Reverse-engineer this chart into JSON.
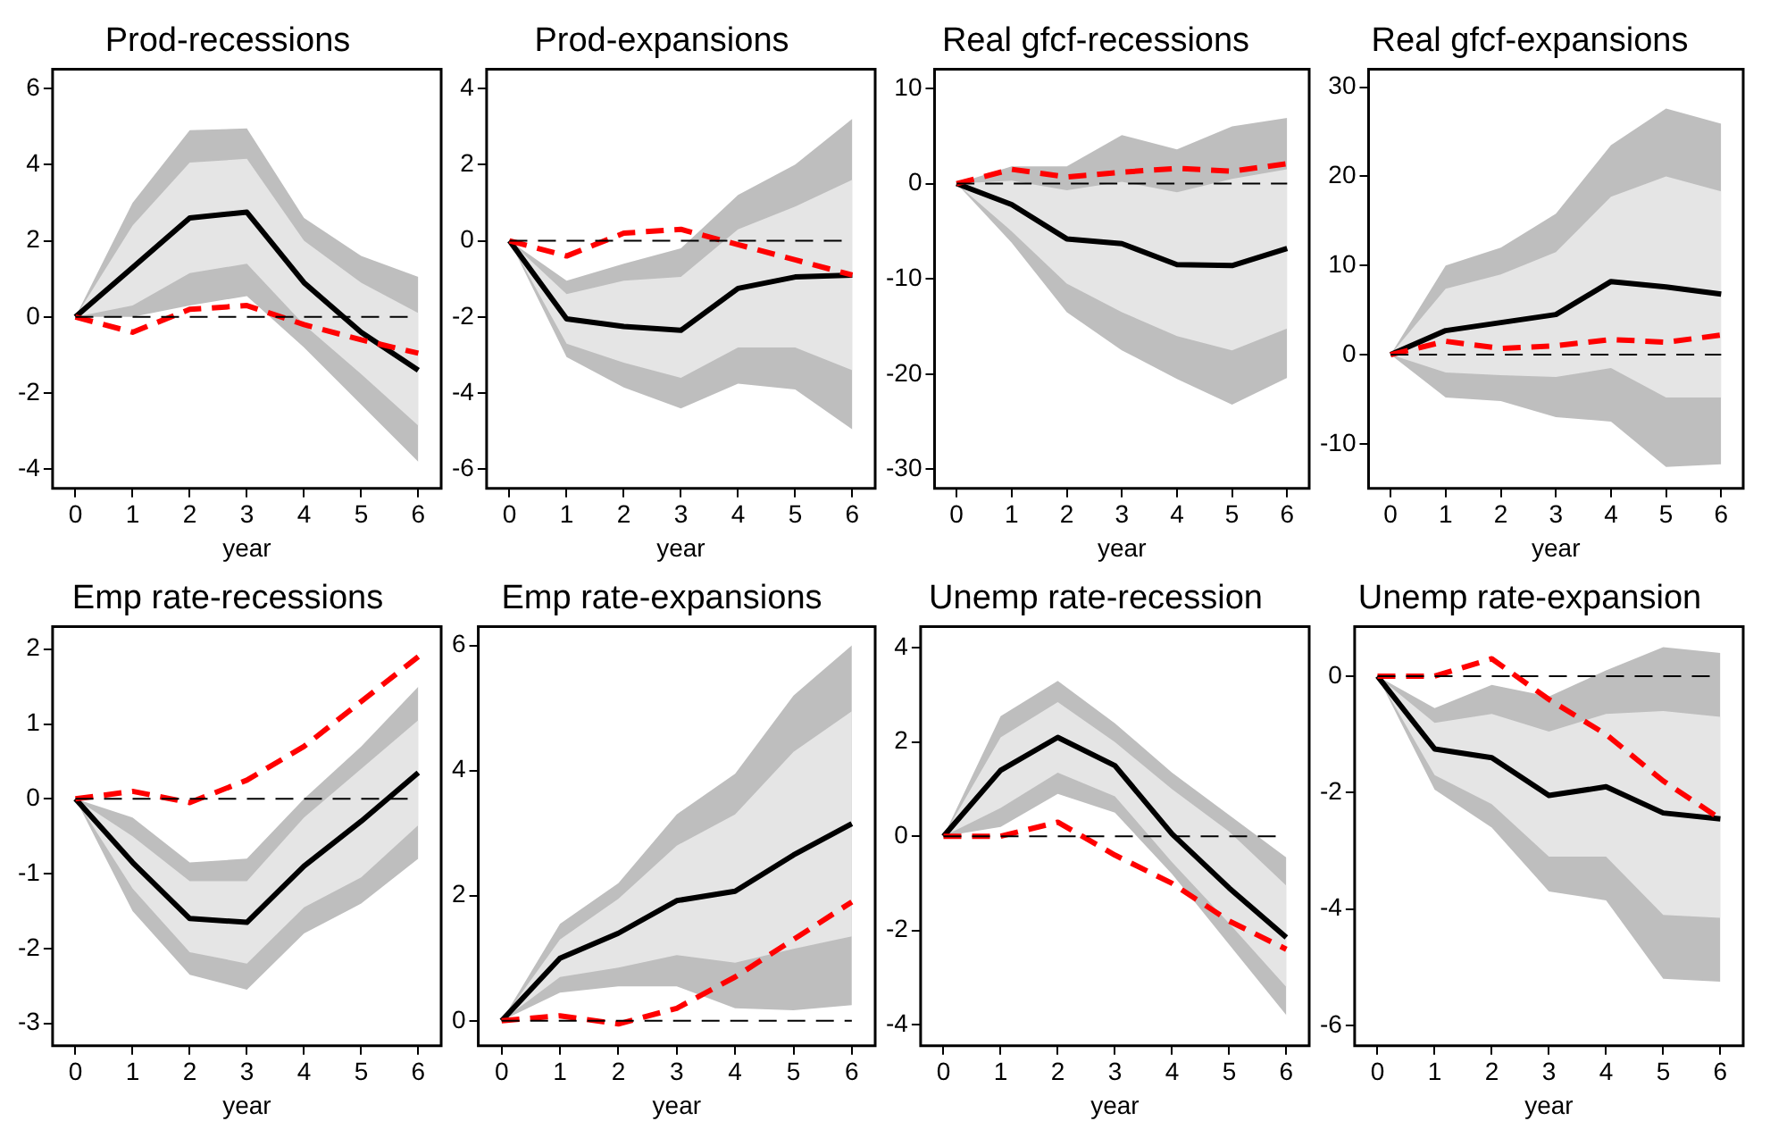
{
  "chart_data": [
    {
      "type": "line",
      "title": "Prod-recessions",
      "xlabel": "year",
      "x": [
        0,
        1,
        2,
        3,
        4,
        5,
        6
      ],
      "xlim": [
        -0.4,
        6.4
      ],
      "xticks": [
        0,
        1,
        2,
        3,
        4,
        5,
        6
      ],
      "ylim": [
        -4.5,
        6.5
      ],
      "yticks": [
        -4,
        -2,
        0,
        2,
        4,
        6
      ],
      "grid": false,
      "ref_lines": [
        {
          "axis": "y",
          "value": 0,
          "color": "#000000",
          "line_style": "dashed"
        }
      ],
      "series": [
        {
          "color": "#bebebe",
          "values": [
            null,
            null,
            null,
            null,
            null,
            null,
            null
          ],
          "lower": [
            0,
            0,
            0.3,
            0.55,
            -0.8,
            -2.3,
            -3.8
          ],
          "upper": [
            0,
            3.0,
            4.9,
            4.95,
            2.6,
            1.6,
            1.05
          ]
        },
        {
          "color": "#e5e5e5",
          "values": [
            null,
            null,
            null,
            null,
            null,
            null,
            null
          ],
          "lower": [
            0,
            0.3,
            1.15,
            1.4,
            -0.2,
            -1.5,
            -2.85
          ],
          "upper": [
            0,
            2.4,
            4.05,
            4.15,
            2.0,
            0.9,
            0.1
          ]
        },
        {
          "color": "#000000",
          "values": [
            0,
            1.3,
            2.6,
            2.75,
            0.9,
            -0.4,
            -1.4
          ]
        },
        {
          "color": "#ff0000",
          "line_style": "dashed",
          "values": [
            0,
            -0.4,
            0.2,
            0.3,
            -0.2,
            -0.6,
            -0.95
          ]
        }
      ]
    },
    {
      "type": "line",
      "title": "Prod-expansions",
      "xlabel": "year",
      "x": [
        0,
        1,
        2,
        3,
        4,
        5,
        6
      ],
      "xlim": [
        -0.4,
        6.4
      ],
      "xticks": [
        0,
        1,
        2,
        3,
        4,
        5,
        6
      ],
      "ylim": [
        -6.5,
        4.5
      ],
      "yticks": [
        -6,
        -4,
        -2,
        0,
        2,
        4
      ],
      "grid": false,
      "ref_lines": [
        {
          "axis": "y",
          "value": 0,
          "color": "#000000",
          "line_style": "dashed"
        }
      ],
      "series": [
        {
          "color": "#bebebe",
          "values": [
            null,
            null,
            null,
            null,
            null,
            null,
            null
          ],
          "lower": [
            0,
            -3.05,
            -3.85,
            -4.4,
            -3.75,
            -3.9,
            -4.95
          ],
          "upper": [
            0,
            -1.05,
            -0.6,
            -0.2,
            1.2,
            2.0,
            3.2
          ]
        },
        {
          "color": "#e5e5e5",
          "values": [
            null,
            null,
            null,
            null,
            null,
            null,
            null
          ],
          "lower": [
            0,
            -2.7,
            -3.2,
            -3.6,
            -2.8,
            -2.8,
            -3.4
          ],
          "upper": [
            0,
            -1.4,
            -1.05,
            -0.95,
            0.3,
            0.9,
            1.6
          ]
        },
        {
          "color": "#000000",
          "values": [
            0,
            -2.05,
            -2.25,
            -2.35,
            -1.25,
            -0.95,
            -0.9
          ]
        },
        {
          "color": "#ff0000",
          "line_style": "dashed",
          "values": [
            0,
            -0.4,
            0.2,
            0.3,
            -0.1,
            -0.5,
            -0.9
          ]
        }
      ]
    },
    {
      "type": "line",
      "title": "Real gfcf-recessions",
      "xlabel": "year",
      "x": [
        0,
        1,
        2,
        3,
        4,
        5,
        6
      ],
      "xlim": [
        -0.4,
        6.4
      ],
      "xticks": [
        0,
        1,
        2,
        3,
        4,
        5,
        6
      ],
      "ylim": [
        -32,
        12
      ],
      "yticks": [
        -30,
        -20,
        -10,
        0,
        10
      ],
      "grid": false,
      "ref_lines": [
        {
          "axis": "y",
          "value": 0,
          "color": "#000000",
          "line_style": "dashed"
        }
      ],
      "series": [
        {
          "color": "#bebebe",
          "values": [
            null,
            null,
            null,
            null,
            null,
            null,
            null
          ],
          "lower": [
            0,
            -6.2,
            -13.5,
            -17.5,
            -20.5,
            -23.2,
            -20.4
          ],
          "upper": [
            0,
            1.8,
            1.8,
            5.1,
            3.6,
            6.0,
            6.9
          ]
        },
        {
          "color": "#e5e5e5",
          "values": [
            null,
            null,
            null,
            null,
            null,
            null,
            null
          ],
          "lower": [
            0,
            -5,
            -10.5,
            -13.5,
            -16,
            -17.5,
            -15.2
          ],
          "upper": [
            0,
            0.3,
            -0.7,
            0.2,
            -0.9,
            0.5,
            1.5
          ]
        },
        {
          "color": "#000000",
          "values": [
            0,
            -2.2,
            -5.8,
            -6.3,
            -8.5,
            -8.6,
            -6.8
          ]
        },
        {
          "color": "#ff0000",
          "line_style": "dashed",
          "values": [
            0,
            1.5,
            0.7,
            1.2,
            1.6,
            1.3,
            2.1
          ]
        }
      ]
    },
    {
      "type": "line",
      "title": "Real gfcf-expansions",
      "xlabel": "year",
      "x": [
        0,
        1,
        2,
        3,
        4,
        5,
        6
      ],
      "xlim": [
        -0.4,
        6.4
      ],
      "xticks": [
        0,
        1,
        2,
        3,
        4,
        5,
        6
      ],
      "ylim": [
        -15,
        32
      ],
      "yticks": [
        -10,
        0,
        10,
        20,
        30
      ],
      "grid": false,
      "ref_lines": [
        {
          "axis": "y",
          "value": 0,
          "color": "#000000",
          "line_style": "dashed"
        }
      ],
      "series": [
        {
          "color": "#bebebe",
          "values": [
            null,
            null,
            null,
            null,
            null,
            null,
            null
          ],
          "lower": [
            0,
            -4.8,
            -5.2,
            -7,
            -7.5,
            -12.6,
            -12.3
          ],
          "upper": [
            0,
            10,
            12,
            15.8,
            23.5,
            27.6,
            25.9
          ]
        },
        {
          "color": "#e5e5e5",
          "values": [
            null,
            null,
            null,
            null,
            null,
            null,
            null
          ],
          "lower": [
            0,
            -2,
            -2.3,
            -2.5,
            -1.5,
            -4.8,
            -4.8
          ],
          "upper": [
            0,
            7.4,
            9,
            11.5,
            17.7,
            20,
            18.3
          ]
        },
        {
          "color": "#000000",
          "values": [
            0,
            2.7,
            3.6,
            4.5,
            8.2,
            7.6,
            6.8
          ]
        },
        {
          "color": "#ff0000",
          "line_style": "dashed",
          "values": [
            0,
            1.5,
            0.7,
            1.0,
            1.7,
            1.4,
            2.2
          ]
        }
      ]
    },
    {
      "type": "line",
      "title": "Emp rate-recessions",
      "xlabel": "year",
      "x": [
        0,
        1,
        2,
        3,
        4,
        5,
        6
      ],
      "xlim": [
        -0.4,
        6.4
      ],
      "xticks": [
        0,
        1,
        2,
        3,
        4,
        5,
        6
      ],
      "ylim": [
        -3.3,
        2.3
      ],
      "yticks": [
        -3,
        -2,
        -1,
        0,
        1,
        2
      ],
      "grid": false,
      "ref_lines": [
        {
          "axis": "y",
          "value": 0,
          "color": "#000000",
          "line_style": "dashed"
        }
      ],
      "series": [
        {
          "color": "#bebebe",
          "values": [
            null,
            null,
            null,
            null,
            null,
            null,
            null
          ],
          "lower": [
            0,
            -1.5,
            -2.35,
            -2.55,
            -1.8,
            -1.4,
            -0.8
          ],
          "upper": [
            0,
            -0.25,
            -0.85,
            -0.8,
            0,
            0.7,
            1.5
          ]
        },
        {
          "color": "#e5e5e5",
          "values": [
            null,
            null,
            null,
            null,
            null,
            null,
            null
          ],
          "lower": [
            0,
            -1.2,
            -2.05,
            -2.2,
            -1.45,
            -1.05,
            -0.35
          ],
          "upper": [
            0,
            -0.5,
            -1.1,
            -1.1,
            -0.25,
            0.4,
            1.05
          ]
        },
        {
          "color": "#000000",
          "values": [
            0,
            -0.85,
            -1.6,
            -1.65,
            -0.9,
            -0.3,
            0.35
          ]
        },
        {
          "color": "#ff0000",
          "line_style": "dashed",
          "values": [
            0,
            0.1,
            -0.05,
            0.25,
            0.7,
            1.3,
            1.9
          ]
        }
      ]
    },
    {
      "type": "line",
      "title": "Emp rate-expansions",
      "xlabel": "year",
      "x": [
        0,
        1,
        2,
        3,
        4,
        5,
        6
      ],
      "xlim": [
        -0.4,
        6.4
      ],
      "xticks": [
        0,
        1,
        2,
        3,
        4,
        5,
        6
      ],
      "ylim": [
        -0.4,
        6.3
      ],
      "yticks": [
        0,
        2,
        4,
        6
      ],
      "grid": false,
      "ref_lines": [
        {
          "axis": "y",
          "value": 0,
          "color": "#000000",
          "line_style": "dashed"
        }
      ],
      "series": [
        {
          "color": "#bebebe",
          "values": [
            null,
            null,
            null,
            null,
            null,
            null,
            null
          ],
          "lower": [
            0,
            0.45,
            0.55,
            0.55,
            0.2,
            0.17,
            0.25
          ],
          "upper": [
            0,
            1.55,
            2.2,
            3.3,
            3.95,
            5.2,
            6.0
          ]
        },
        {
          "color": "#e5e5e5",
          "values": [
            null,
            null,
            null,
            null,
            null,
            null,
            null
          ],
          "lower": [
            0,
            0.7,
            0.85,
            1.05,
            0.93,
            1.15,
            1.35
          ],
          "upper": [
            0,
            1.3,
            1.95,
            2.8,
            3.3,
            4.3,
            4.95
          ]
        },
        {
          "color": "#000000",
          "values": [
            0,
            1.0,
            1.4,
            1.92,
            2.07,
            2.65,
            3.15
          ]
        },
        {
          "color": "#ff0000",
          "line_style": "dashed",
          "values": [
            0,
            0.08,
            -0.05,
            0.2,
            0.7,
            1.3,
            1.9
          ]
        }
      ]
    },
    {
      "type": "line",
      "title": "Unemp rate-recession",
      "xlabel": "year",
      "x": [
        0,
        1,
        2,
        3,
        4,
        5,
        6
      ],
      "xlim": [
        -0.4,
        6.4
      ],
      "xticks": [
        0,
        1,
        2,
        3,
        4,
        5,
        6
      ],
      "ylim": [
        -4.45,
        4.45
      ],
      "yticks": [
        -4,
        -2,
        0,
        2,
        4
      ],
      "grid": false,
      "ref_lines": [
        {
          "axis": "y",
          "value": 0,
          "color": "#000000",
          "line_style": "dashed"
        }
      ],
      "series": [
        {
          "color": "#bebebe",
          "values": [
            null,
            null,
            null,
            null,
            null,
            null,
            null
          ],
          "lower": [
            0,
            0.2,
            0.9,
            0.5,
            -0.8,
            -2.3,
            -3.8
          ],
          "upper": [
            0,
            2.55,
            3.3,
            2.4,
            1.35,
            0.45,
            -0.45
          ]
        },
        {
          "color": "#e5e5e5",
          "values": [
            null,
            null,
            null,
            null,
            null,
            null,
            null
          ],
          "lower": [
            0,
            0.6,
            1.35,
            0.85,
            -0.55,
            -1.85,
            -3.2
          ],
          "upper": [
            0,
            2.1,
            2.85,
            2.0,
            1.0,
            0.1,
            -1.05
          ]
        },
        {
          "color": "#000000",
          "values": [
            0,
            1.4,
            2.1,
            1.5,
            0.05,
            -1.1,
            -2.15
          ]
        },
        {
          "color": "#ff0000",
          "line_style": "dashed",
          "values": [
            0,
            0,
            0.3,
            -0.4,
            -1.0,
            -1.8,
            -2.4
          ]
        }
      ]
    },
    {
      "type": "line",
      "title": "Unemp rate-expansion",
      "xlabel": "year",
      "x": [
        0,
        1,
        2,
        3,
        4,
        5,
        6
      ],
      "xlim": [
        -0.4,
        6.4
      ],
      "xticks": [
        0,
        1,
        2,
        3,
        4,
        5,
        6
      ],
      "ylim": [
        -6.35,
        0.85
      ],
      "yticks": [
        -6,
        -4,
        -2,
        0
      ],
      "grid": false,
      "ref_lines": [
        {
          "axis": "y",
          "value": 0,
          "color": "#000000",
          "line_style": "dashed"
        }
      ],
      "series": [
        {
          "color": "#bebebe",
          "values": [
            null,
            null,
            null,
            null,
            null,
            null,
            null
          ],
          "lower": [
            0,
            -1.95,
            -2.6,
            -3.7,
            -3.85,
            -5.2,
            -5.25
          ],
          "upper": [
            0,
            -0.55,
            -0.15,
            -0.35,
            0.1,
            0.5,
            0.4
          ]
        },
        {
          "color": "#e5e5e5",
          "values": [
            null,
            null,
            null,
            null,
            null,
            null,
            null
          ],
          "lower": [
            0,
            -1.7,
            -2.2,
            -3.1,
            -3.1,
            -4.1,
            -4.15
          ],
          "upper": [
            0,
            -0.8,
            -0.65,
            -0.95,
            -0.65,
            -0.6,
            -0.7
          ]
        },
        {
          "color": "#000000",
          "values": [
            0,
            -1.25,
            -1.4,
            -2.05,
            -1.9,
            -2.35,
            -2.45
          ]
        },
        {
          "color": "#ff0000",
          "line_style": "dashed",
          "values": [
            0,
            0,
            0.3,
            -0.4,
            -1.0,
            -1.8,
            -2.45
          ]
        }
      ]
    }
  ]
}
